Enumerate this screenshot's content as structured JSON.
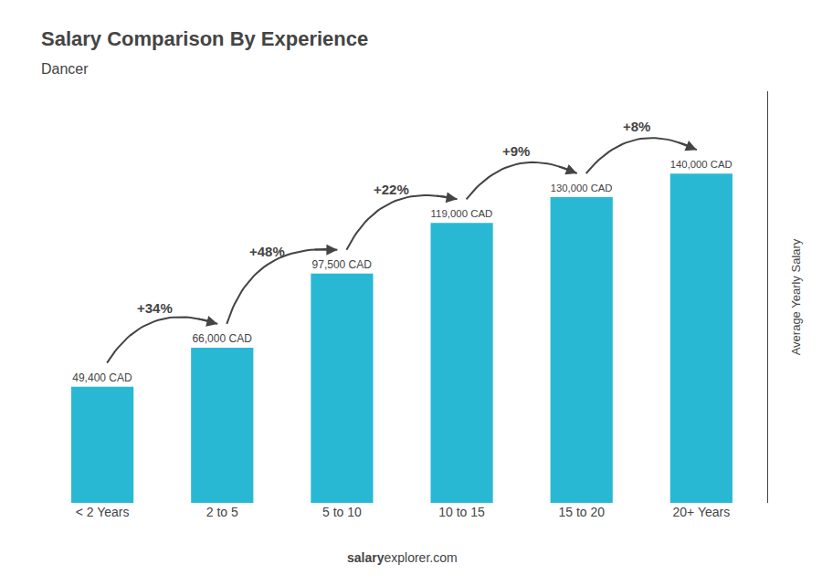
{
  "chart_data": {
    "type": "bar",
    "title": "Salary Comparison By Experience",
    "subtitle": "Dancer",
    "ylabel": "Average Yearly Salary",
    "categories": [
      "< 2 Years",
      "2 to 5",
      "5 to 10",
      "10 to 15",
      "15 to 20",
      "20+ Years"
    ],
    "values": [
      49400,
      66000,
      97500,
      119000,
      130000,
      140000
    ],
    "value_labels": [
      "49,400 CAD",
      "66,000 CAD",
      "97,500 CAD",
      "119,000 CAD",
      "130,000 CAD",
      "140,000 CAD"
    ],
    "data_labels": true,
    "color": "#29b8d4",
    "annotations": [
      "+34%",
      "+48%",
      "+22%",
      "+9%",
      "+8%"
    ],
    "footer_bold": "salary",
    "footer_normal": "explorer.com",
    "ylim": [
      0,
      175000
    ],
    "tick_labels": "x",
    "grid": false
  }
}
